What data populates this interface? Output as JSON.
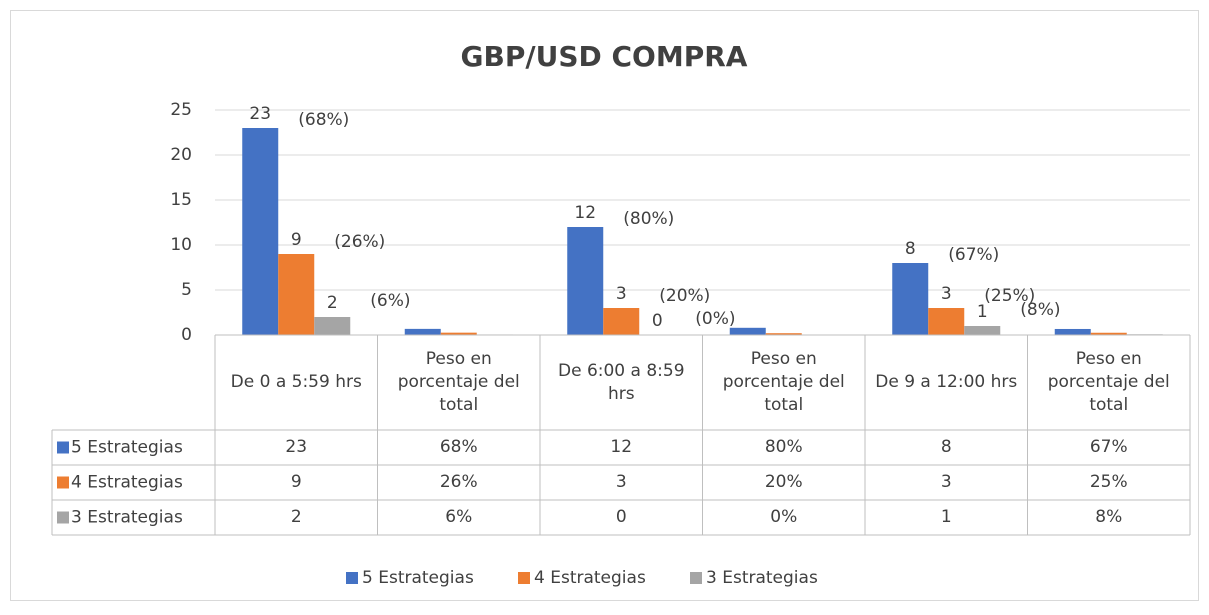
{
  "chart_data": {
    "type": "bar",
    "title": "GBP/USD COMPRA",
    "categories": [
      "De 0 a 5:59 hrs",
      "Peso en porcentaje del total",
      "De 6:00 a 8:59 hrs",
      "Peso en porcentaje del total",
      "De 9 a 12:00 hrs",
      "Peso en porcentaje del total"
    ],
    "series": [
      {
        "name": "5 Estrategias",
        "color": "#4472c4",
        "values": [
          23,
          0.68,
          12,
          0.8,
          8,
          0.67
        ],
        "value_labels": [
          "23",
          "68%",
          "12",
          "80%",
          "8",
          "67%"
        ]
      },
      {
        "name": "4 Estrategias",
        "color": "#ed7d31",
        "values": [
          9,
          0.26,
          3,
          0.2,
          3,
          0.25
        ],
        "value_labels": [
          "9",
          "26%",
          "3",
          "20%",
          "3",
          "25%"
        ]
      },
      {
        "name": "3 Estrategias",
        "color": "#a5a5a5",
        "values": [
          2,
          0.06,
          0,
          0,
          1,
          0.08
        ],
        "value_labels": [
          "2",
          "6%",
          "0",
          "0%",
          "1",
          "8%"
        ]
      }
    ],
    "annotations": [
      "(68%)",
      "(26%)",
      "(6%)",
      "(80%)",
      "(20%)",
      "(0%)",
      "(67%)",
      "(25%)",
      "(8%)"
    ],
    "ylim": [
      0,
      25
    ],
    "yticks": [
      0,
      5,
      10,
      15,
      20,
      25
    ],
    "grid": true,
    "legend": "bottom"
  }
}
